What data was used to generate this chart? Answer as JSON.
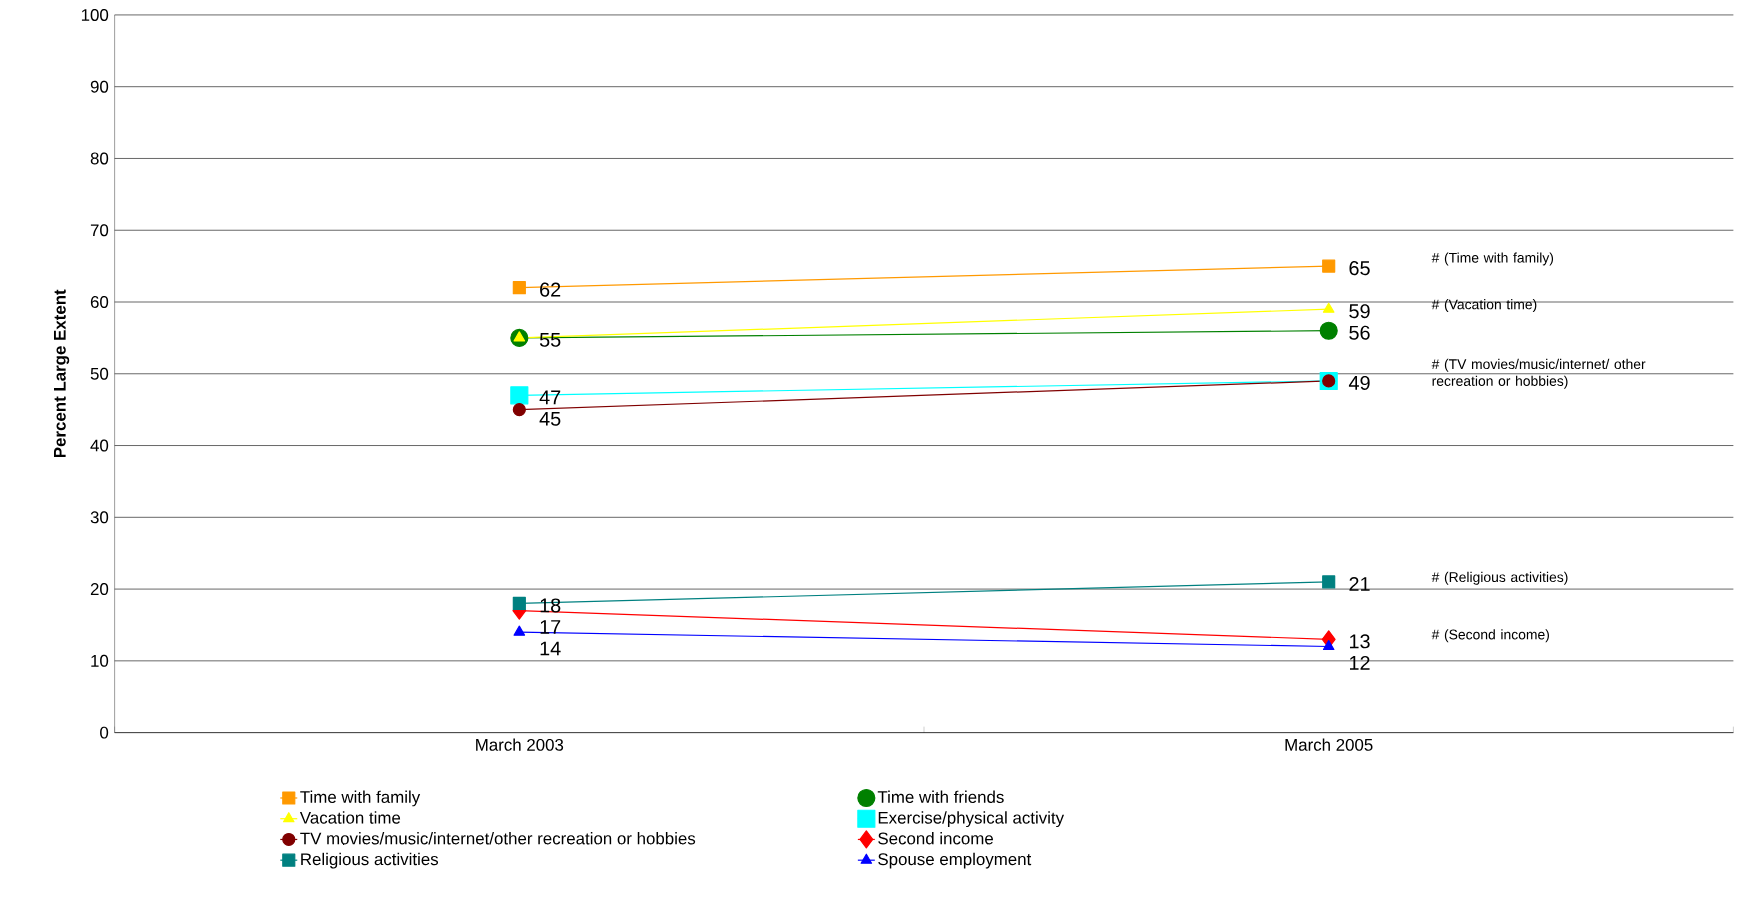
{
  "chart_data": {
    "type": "line",
    "ylabel": "Percent Large Extent",
    "categories": [
      "March 2003",
      "March 2005"
    ],
    "series": [
      {
        "name": "Time with family",
        "color": "#ff9900",
        "marker": "square",
        "values": [
          62,
          65
        ],
        "value_labels": [
          "62",
          "65"
        ]
      },
      {
        "name": "Time with friends",
        "color": "#008000",
        "marker": "circle",
        "values": [
          55,
          56
        ],
        "value_labels": [
          null,
          "56"
        ]
      },
      {
        "name": "Vacation time",
        "color": "#ffff00",
        "marker": "triangle",
        "values": [
          55,
          59
        ],
        "value_labels": [
          "55",
          "59"
        ]
      },
      {
        "name": "Exercise/physical activity",
        "color": "#00ffff",
        "marker": "square",
        "values": [
          47,
          49
        ],
        "value_labels": [
          "47",
          null
        ]
      },
      {
        "name": "TV movies/music/internet/other recreation or hobbies",
        "color": "#800000",
        "marker": "circle",
        "values": [
          45,
          49
        ],
        "value_labels": [
          "45",
          "49"
        ]
      },
      {
        "name": "Second income",
        "color": "#ff0000",
        "marker": "diamond",
        "values": [
          17,
          13
        ],
        "value_labels": [
          "17",
          "13"
        ]
      },
      {
        "name": "Religious activities",
        "color": "#008080",
        "marker": "square",
        "values": [
          18,
          21
        ],
        "value_labels": [
          "18",
          "21"
        ]
      },
      {
        "name": "Spouse employment",
        "color": "#0000ff",
        "marker": "triangle",
        "values": [
          14,
          12
        ],
        "value_labels": [
          "14",
          "12"
        ]
      }
    ],
    "ylim": [
      0,
      100
    ],
    "yticks": [
      0,
      10,
      20,
      30,
      40,
      50,
      60,
      70,
      80,
      90,
      100
    ],
    "grid": "y",
    "legend": "bottom",
    "annotations": [
      "# (Time with family)",
      "# (Vacation time)",
      "# (TV movies/music/internet/ other recreation or hobbies)",
      "# (Religious activities)",
      "# (Second income)"
    ]
  }
}
